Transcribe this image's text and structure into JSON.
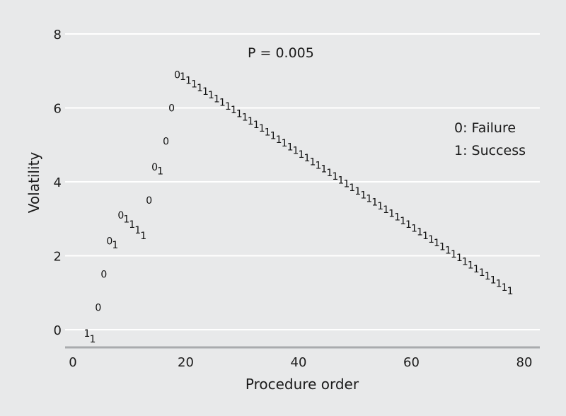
{
  "chart_data": {
    "type": "scatter",
    "title": "",
    "xlabel": "Procedure order",
    "ylabel": "Volatility",
    "xlim": [
      0,
      80
    ],
    "ylim": [
      0,
      8
    ],
    "xticks": [
      0,
      20,
      40,
      60,
      80
    ],
    "yticks": [
      0,
      2,
      4,
      6,
      8
    ],
    "grid": "horizontal",
    "annotations": {
      "p_value": "P = 0.005",
      "legend_failure": "0: Failure",
      "legend_success": "1: Success"
    },
    "series": [
      {
        "marker_glyph": "0",
        "points": [
          {
            "x": 4.5,
            "y": 0.6
          },
          {
            "x": 5.5,
            "y": 1.5
          },
          {
            "x": 6.5,
            "y": 2.4
          },
          {
            "x": 8.5,
            "y": 3.1
          },
          {
            "x": 13.5,
            "y": 3.5
          },
          {
            "x": 14.5,
            "y": 4.4
          },
          {
            "x": 16.5,
            "y": 5.1
          },
          {
            "x": 17.5,
            "y": 6.0
          },
          {
            "x": 18.5,
            "y": 6.9
          }
        ]
      },
      {
        "marker_glyph": "1",
        "points": [
          {
            "x": 2.5,
            "y": -0.1
          },
          {
            "x": 3.5,
            "y": -0.25
          },
          {
            "x": 7.5,
            "y": 2.3
          },
          {
            "x": 9.5,
            "y": 3.0
          },
          {
            "x": 10.5,
            "y": 2.85
          },
          {
            "x": 11.5,
            "y": 2.7
          },
          {
            "x": 12.5,
            "y": 2.55
          },
          {
            "x": 15.5,
            "y": 4.3
          },
          {
            "x": 19.5,
            "y": 6.85
          },
          {
            "x": 20.5,
            "y": 6.75
          },
          {
            "x": 21.5,
            "y": 6.65
          },
          {
            "x": 22.5,
            "y": 6.55
          },
          {
            "x": 23.5,
            "y": 6.45
          },
          {
            "x": 24.5,
            "y": 6.35
          },
          {
            "x": 25.5,
            "y": 6.25
          },
          {
            "x": 26.5,
            "y": 6.15
          },
          {
            "x": 27.5,
            "y": 6.05
          },
          {
            "x": 28.5,
            "y": 5.95
          },
          {
            "x": 29.5,
            "y": 5.85
          },
          {
            "x": 30.5,
            "y": 5.75
          },
          {
            "x": 31.5,
            "y": 5.65
          },
          {
            "x": 32.5,
            "y": 5.55
          },
          {
            "x": 33.5,
            "y": 5.45
          },
          {
            "x": 34.5,
            "y": 5.35
          },
          {
            "x": 35.5,
            "y": 5.25
          },
          {
            "x": 36.5,
            "y": 5.15
          },
          {
            "x": 37.5,
            "y": 5.05
          },
          {
            "x": 38.5,
            "y": 4.95
          },
          {
            "x": 39.5,
            "y": 4.85
          },
          {
            "x": 40.5,
            "y": 4.75
          },
          {
            "x": 41.5,
            "y": 4.65
          },
          {
            "x": 42.5,
            "y": 4.55
          },
          {
            "x": 43.5,
            "y": 4.45
          },
          {
            "x": 44.5,
            "y": 4.35
          },
          {
            "x": 45.5,
            "y": 4.25
          },
          {
            "x": 46.5,
            "y": 4.15
          },
          {
            "x": 47.5,
            "y": 4.05
          },
          {
            "x": 48.5,
            "y": 3.95
          },
          {
            "x": 49.5,
            "y": 3.85
          },
          {
            "x": 50.5,
            "y": 3.75
          },
          {
            "x": 51.5,
            "y": 3.65
          },
          {
            "x": 52.5,
            "y": 3.55
          },
          {
            "x": 53.5,
            "y": 3.45
          },
          {
            "x": 54.5,
            "y": 3.35
          },
          {
            "x": 55.5,
            "y": 3.25
          },
          {
            "x": 56.5,
            "y": 3.15
          },
          {
            "x": 57.5,
            "y": 3.05
          },
          {
            "x": 58.5,
            "y": 2.95
          },
          {
            "x": 59.5,
            "y": 2.85
          },
          {
            "x": 60.5,
            "y": 2.75
          },
          {
            "x": 61.5,
            "y": 2.65
          },
          {
            "x": 62.5,
            "y": 2.55
          },
          {
            "x": 63.5,
            "y": 2.45
          },
          {
            "x": 64.5,
            "y": 2.35
          },
          {
            "x": 65.5,
            "y": 2.25
          },
          {
            "x": 66.5,
            "y": 2.15
          },
          {
            "x": 67.5,
            "y": 2.05
          },
          {
            "x": 68.5,
            "y": 1.95
          },
          {
            "x": 69.5,
            "y": 1.85
          },
          {
            "x": 70.5,
            "y": 1.75
          },
          {
            "x": 71.5,
            "y": 1.65
          },
          {
            "x": 72.5,
            "y": 1.55
          },
          {
            "x": 73.5,
            "y": 1.45
          },
          {
            "x": 74.5,
            "y": 1.35
          },
          {
            "x": 75.5,
            "y": 1.25
          },
          {
            "x": 76.5,
            "y": 1.15
          },
          {
            "x": 77.5,
            "y": 1.05
          }
        ]
      }
    ]
  }
}
